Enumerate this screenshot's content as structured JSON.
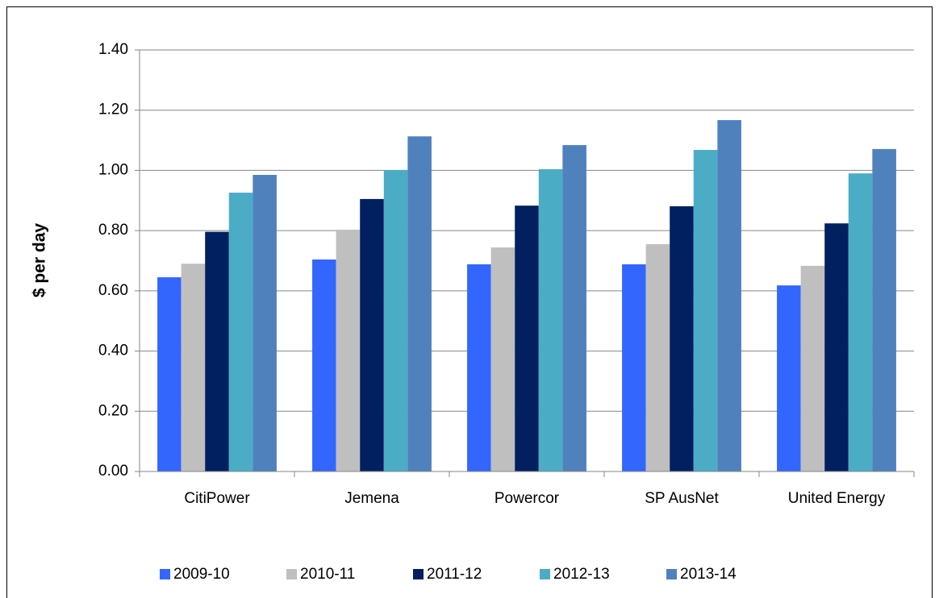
{
  "chart_data": {
    "type": "bar",
    "y_label": "$ per day",
    "categories": [
      "CitiPower",
      "Jemena",
      "Powercor",
      "SP AusNet",
      "United Energy"
    ],
    "series": [
      {
        "name": "2009-10",
        "color": "#3366ff",
        "values": [
          0.645,
          0.704,
          0.688,
          0.688,
          0.618
        ]
      },
      {
        "name": "2010-11",
        "color": "#bfbfbf",
        "values": [
          0.69,
          0.803,
          0.744,
          0.755,
          0.683
        ]
      },
      {
        "name": "2011-12",
        "color": "#002060",
        "values": [
          0.796,
          0.905,
          0.883,
          0.881,
          0.824
        ]
      },
      {
        "name": "2012-13",
        "color": "#4bacc6",
        "values": [
          0.926,
          1.001,
          1.004,
          1.068,
          0.99
        ]
      },
      {
        "name": "2013-14",
        "color": "#4f81bd",
        "values": [
          0.985,
          1.113,
          1.084,
          1.167,
          1.071
        ]
      }
    ],
    "ylim": [
      0,
      1.4
    ],
    "yticks": [
      {
        "value": 0,
        "label": "0.00"
      },
      {
        "value": 0.2,
        "label": "0.20"
      },
      {
        "value": 0.4,
        "label": "0.40"
      },
      {
        "value": 0.6,
        "label": "0.60"
      },
      {
        "value": 0.8,
        "label": "0.80"
      },
      {
        "value": 1,
        "label": "1.00"
      },
      {
        "value": 1.2,
        "label": "1.20"
      },
      {
        "value": 1.4,
        "label": "1.40"
      }
    ],
    "grid": true,
    "legend": "bottom"
  }
}
